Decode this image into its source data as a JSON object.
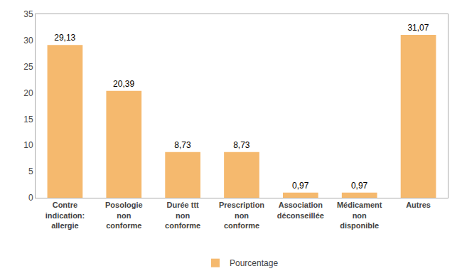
{
  "chart_data": {
    "type": "bar",
    "categories": [
      "Contre\nindication:\nallergie",
      "Posologie\nnon\nconforme",
      "Durée ttt\nnon\nconforme",
      "Prescription\nnon\nconforme",
      "Association\ndéconseillée",
      "Médicament\nnon\ndisponible",
      "Autres"
    ],
    "series": [
      {
        "name": "Pourcentage",
        "color": "#F5B96E",
        "values": [
          29.13,
          20.39,
          8.73,
          8.73,
          0.97,
          0.97,
          31.07
        ],
        "value_labels": [
          "29,13",
          "20,39",
          "8,73",
          "8,73",
          "0,97",
          "0,97",
          "31,07"
        ]
      }
    ],
    "ylim": [
      0,
      35
    ],
    "yticks": [
      0,
      5,
      10,
      15,
      20,
      25,
      30,
      35
    ],
    "data_labels": true,
    "legend": "bottom",
    "grid": false
  }
}
